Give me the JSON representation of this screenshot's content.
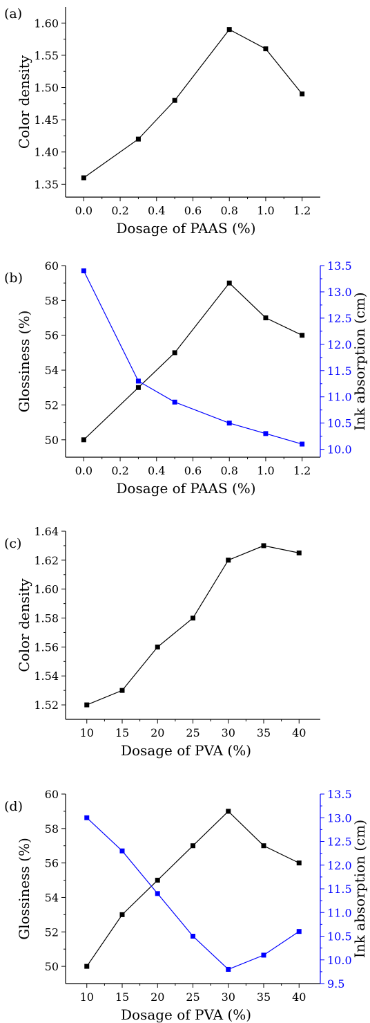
{
  "figure": {
    "panels": [
      {
        "label": "(a)"
      },
      {
        "label": "(b)"
      },
      {
        "label": "(c)"
      },
      {
        "label": "(d)"
      }
    ]
  },
  "colors": {
    "primary": "#000000",
    "secondary": "#0000ff"
  },
  "chart_data": [
    {
      "type": "line",
      "x": [
        0.0,
        0.3,
        0.5,
        0.8,
        1.0,
        1.2
      ],
      "series": [
        {
          "values": [
            1.36,
            1.42,
            1.48,
            1.59,
            1.56,
            1.49
          ],
          "color": "#000000",
          "marker": "square"
        }
      ],
      "xlabel": "Dosage of PAAS (%)",
      "ylabel": "Color density",
      "xticks": [
        "0.0",
        "0.2",
        "0.4",
        "0.6",
        "0.8",
        "1.0",
        "1.2"
      ],
      "yticks": [
        "1.35",
        "1.40",
        "1.45",
        "1.50",
        "1.55",
        "1.60"
      ],
      "xlim": [
        -0.1,
        1.3
      ],
      "ylim": [
        1.33,
        1.625
      ]
    },
    {
      "type": "line",
      "x": [
        0.0,
        0.3,
        0.5,
        0.8,
        1.0,
        1.2
      ],
      "series": [
        {
          "values": [
            50,
            53,
            55,
            59,
            57,
            56
          ],
          "color": "#000000",
          "marker": "square",
          "axis": "left"
        },
        {
          "values": [
            13.4,
            11.3,
            10.9,
            10.5,
            10.3,
            10.1
          ],
          "color": "#0000ff",
          "marker": "square",
          "axis": "right"
        }
      ],
      "xlabel": "Dosage of PAAS (%)",
      "ylabel": "Glossiness  (%)",
      "ylabel_right": "Ink absorption  (cm)",
      "xticks": [
        "0.0",
        "0.2",
        "0.4",
        "0.6",
        "0.8",
        "1.0",
        "1.2"
      ],
      "yticks": [
        "50",
        "52",
        "54",
        "56",
        "58",
        "60"
      ],
      "yticks_right": [
        "10.0",
        "10.5",
        "11.0",
        "11.5",
        "12.0",
        "12.5",
        "13.0",
        "13.5"
      ],
      "xlim": [
        -0.1,
        1.3
      ],
      "ylim": [
        49,
        60
      ],
      "ylim_right": [
        9.85,
        13.5
      ]
    },
    {
      "type": "line",
      "x": [
        10,
        15,
        20,
        25,
        30,
        35,
        40
      ],
      "series": [
        {
          "values": [
            1.52,
            1.53,
            1.56,
            1.58,
            1.62,
            1.63,
            1.625
          ],
          "color": "#000000",
          "marker": "square"
        }
      ],
      "xlabel": "Dosage of PVA (%)",
      "ylabel": "Color density",
      "xticks": [
        "10",
        "15",
        "20",
        "25",
        "30",
        "35",
        "40"
      ],
      "yticks": [
        "1.52",
        "1.54",
        "1.56",
        "1.58",
        "1.60",
        "1.62",
        "1.64"
      ],
      "xlim": [
        7,
        43
      ],
      "ylim": [
        1.51,
        1.64
      ]
    },
    {
      "type": "line",
      "x": [
        10,
        15,
        20,
        25,
        30,
        35,
        40
      ],
      "series": [
        {
          "values": [
            50,
            53,
            55,
            57,
            59,
            57,
            56
          ],
          "color": "#000000",
          "marker": "square",
          "axis": "left"
        },
        {
          "values": [
            13.0,
            12.3,
            11.4,
            10.5,
            9.8,
            10.1,
            10.6
          ],
          "color": "#0000ff",
          "marker": "square",
          "axis": "right"
        }
      ],
      "xlabel": "Dosage of PVA (%)",
      "ylabel": "Glossiness  (%)",
      "ylabel_right": "Ink absorption  (cm)",
      "xticks": [
        "10",
        "15",
        "20",
        "25",
        "30",
        "35",
        "40"
      ],
      "yticks": [
        "50",
        "52",
        "54",
        "56",
        "58",
        "60"
      ],
      "yticks_right": [
        "9.5",
        "10.0",
        "10.5",
        "11.0",
        "11.5",
        "12.0",
        "12.5",
        "13.0",
        "13.5"
      ],
      "xlim": [
        7,
        43
      ],
      "ylim": [
        49,
        60
      ],
      "ylim_right": [
        9.5,
        13.5
      ]
    }
  ]
}
